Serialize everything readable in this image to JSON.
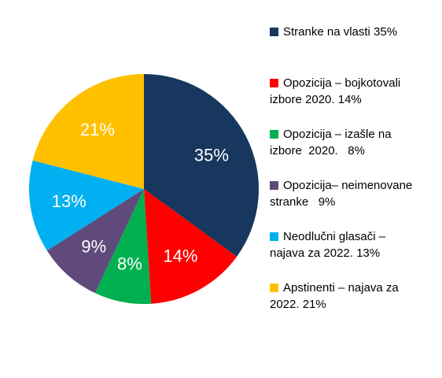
{
  "chart_data": {
    "type": "pie",
    "slices": [
      {
        "label_lines": [
          "Stranke na vlasti 35%"
        ],
        "value": 35,
        "value_label": "35%",
        "color": "#17375E"
      },
      {
        "label_lines": [
          "Opozicija – bojkotovali",
          "izbore 2020. 14%"
        ],
        "value": 14,
        "value_label": "14%",
        "color": "#FF0000"
      },
      {
        "label_lines": [
          "Opozicija – izašle na",
          "izbore  2020.   8%"
        ],
        "value": 8,
        "value_label": "8%",
        "color": "#00B050"
      },
      {
        "label_lines": [
          "Opozicija– neimenovane",
          "stranke   9%"
        ],
        "value": 9,
        "value_label": "9%",
        "color": "#604A7B"
      },
      {
        "label_lines": [
          "Neodlučni glasači –",
          "najava za 2022. 13%"
        ],
        "value": 13,
        "value_label": "13%",
        "color": "#00B0F0"
      },
      {
        "label_lines": [
          "Apstinenti – najava za",
          "2022. 21%"
        ],
        "value": 21,
        "value_label": "21%",
        "color": "#FFC000"
      }
    ],
    "start_angle_deg": 0,
    "direction": "clockwise",
    "legend_position": "right"
  }
}
